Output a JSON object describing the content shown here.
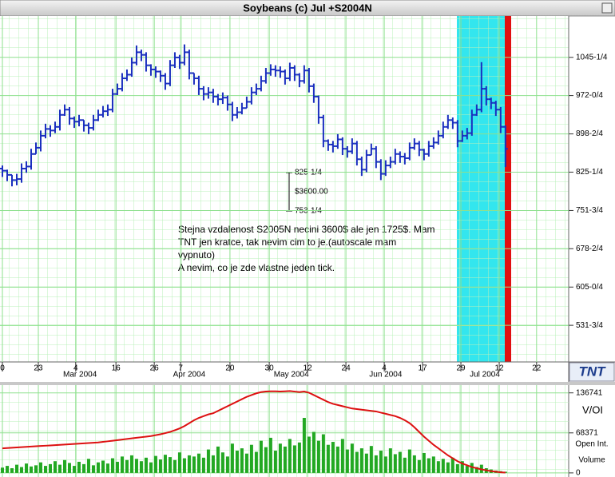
{
  "chart_data": [
    {
      "type": "ohlc",
      "title": "Soybeans (c) Jul +S2004N",
      "color": "#1a2fbf",
      "grid": true,
      "xlim": [
        0,
        118.7
      ],
      "xticks": [
        {
          "value": 0.5,
          "label": "0"
        },
        {
          "value": 8,
          "label": "23"
        },
        {
          "value": 15.8,
          "label": "4"
        },
        {
          "value": 24.2,
          "label": "16"
        },
        {
          "value": 32.2,
          "label": "26"
        },
        {
          "value": 37.7,
          "label": "7"
        },
        {
          "value": 48,
          "label": "20"
        },
        {
          "value": 56.2,
          "label": "30"
        },
        {
          "value": 64.2,
          "label": "12"
        },
        {
          "value": 72.2,
          "label": "24"
        },
        {
          "value": 80.2,
          "label": "4"
        },
        {
          "value": 88.2,
          "label": "17"
        },
        {
          "value": 96.2,
          "label": "29"
        },
        {
          "value": 104.2,
          "label": "12"
        },
        {
          "value": 112,
          "label": "22"
        }
      ],
      "month_labels": [
        {
          "value": 16.7,
          "label": "Mar 2004"
        },
        {
          "value": 39.5,
          "label": "Apr 2004"
        },
        {
          "value": 60.8,
          "label": "May 2004"
        },
        {
          "value": 80.5,
          "label": "Jun 2004"
        },
        {
          "value": 101.2,
          "label": "Jul 2004"
        }
      ],
      "ylim": [
        461.5,
        1124.5
      ],
      "yticks": [
        {
          "value": 531.75,
          "label": "531-3/4"
        },
        {
          "value": 605,
          "label": "605-0/4"
        },
        {
          "value": 678.5,
          "label": "678-2/4"
        },
        {
          "value": 751.75,
          "label": "751-3/4"
        },
        {
          "value": 825.25,
          "label": "825-1/4"
        },
        {
          "value": 898.5,
          "label": "898-2/4"
        },
        {
          "value": 972,
          "label": "972-0/4"
        },
        {
          "value": 1045.25,
          "label": "1045-1/4"
        }
      ],
      "open": [
        832,
        828,
        820,
        810,
        812,
        832,
        836,
        860,
        872,
        895,
        908,
        905,
        912,
        935,
        945,
        928,
        922,
        925,
        915,
        910,
        925,
        935,
        942,
        945,
        975,
        985,
        1005,
        1012,
        1035,
        1055,
        1050,
        1030,
        1022,
        1018,
        1010,
        995,
        1030,
        1045,
        1035,
        1055,
        1015,
        1005,
        985,
        975,
        978,
        970,
        965,
        968,
        955,
        935,
        940,
        948,
        960,
        978,
        985,
        1000,
        1015,
        1022,
        1020,
        1018,
        1005,
        1025,
        1012,
        1000,
        1020,
        990,
        970,
        930,
        885,
        878,
        875,
        888,
        870,
        865,
        880,
        850,
        830,
        858,
        870,
        845,
        822,
        838,
        845,
        860,
        855,
        852,
        872,
        880,
        868,
        860,
        875,
        882,
        895,
        912,
        925,
        920,
        885,
        895,
        900,
        935,
        945,
        985,
        965,
        958,
        945,
        912
      ],
      "high": [
        838,
        830,
        820,
        822,
        842,
        846,
        870,
        882,
        905,
        918,
        915,
        922,
        945,
        955,
        950,
        932,
        935,
        925,
        920,
        935,
        945,
        952,
        955,
        985,
        995,
        1015,
        1022,
        1045,
        1068,
        1060,
        1055,
        1032,
        1028,
        1020,
        1015,
        1040,
        1055,
        1050,
        1070,
        1060,
        1015,
        1010,
        990,
        988,
        985,
        975,
        978,
        972,
        960,
        950,
        958,
        970,
        988,
        995,
        1010,
        1025,
        1032,
        1030,
        1028,
        1022,
        1035,
        1030,
        1015,
        1030,
        1025,
        995,
        972,
        935,
        888,
        885,
        898,
        892,
        875,
        890,
        885,
        855,
        868,
        880,
        875,
        850,
        848,
        855,
        870,
        865,
        862,
        882,
        890,
        885,
        870,
        885,
        892,
        905,
        922,
        935,
        930,
        925,
        905,
        910,
        945,
        955,
        1036,
        990,
        968,
        962,
        950,
        915
      ],
      "low": [
        816,
        808,
        798,
        800,
        805,
        824,
        830,
        860,
        865,
        890,
        893,
        900,
        905,
        933,
        916,
        910,
        913,
        903,
        898,
        905,
        923,
        930,
        933,
        940,
        973,
        980,
        1000,
        1008,
        1030,
        1038,
        1018,
        1010,
        1006,
        998,
        983,
        990,
        1025,
        1023,
        1030,
        1003,
        993,
        973,
        963,
        966,
        958,
        953,
        956,
        943,
        923,
        928,
        936,
        948,
        955,
        973,
        980,
        995,
        1010,
        1008,
        1006,
        993,
        1000,
        1000,
        988,
        995,
        978,
        958,
        918,
        873,
        866,
        863,
        870,
        858,
        853,
        860,
        838,
        818,
        825,
        858,
        833,
        810,
        818,
        833,
        840,
        843,
        840,
        848,
        868,
        856,
        848,
        855,
        870,
        878,
        890,
        908,
        908,
        873,
        883,
        888,
        895,
        933,
        940,
        953,
        946,
        933,
        900,
        835
      ],
      "close": [
        828,
        820,
        810,
        812,
        832,
        836,
        860,
        872,
        895,
        908,
        905,
        912,
        935,
        945,
        928,
        922,
        925,
        915,
        910,
        925,
        935,
        942,
        945,
        975,
        985,
        1005,
        1012,
        1035,
        1055,
        1050,
        1030,
        1022,
        1018,
        1010,
        995,
        1030,
        1045,
        1035,
        1055,
        1015,
        1005,
        985,
        975,
        978,
        970,
        965,
        968,
        955,
        935,
        940,
        948,
        960,
        978,
        985,
        1000,
        1015,
        1022,
        1020,
        1018,
        1005,
        1025,
        1012,
        1000,
        1020,
        990,
        970,
        930,
        885,
        878,
        875,
        888,
        870,
        865,
        880,
        850,
        830,
        858,
        870,
        845,
        822,
        838,
        845,
        860,
        855,
        852,
        872,
        880,
        868,
        860,
        875,
        882,
        895,
        912,
        925,
        920,
        885,
        895,
        900,
        935,
        945,
        985,
        965,
        958,
        945,
        912,
        870
      ],
      "bracket": {
        "top": "825-1/4",
        "middle": "$3600.00",
        "bottom": "753-1/4"
      },
      "note": [
        "Stejna vzdalenost S2005N necini 3600$ ale jen 1725$. Mam",
        "TNT jen kratce, tak nevim cim to je.(autoscale mam",
        "vypnuto)",
        "A nevim, co je zde vlastne jeden tick."
      ],
      "logo": "TNT"
    },
    {
      "type": "volume",
      "title": "V/OI",
      "grid": true,
      "ylim": [
        -7000,
        150000
      ],
      "yticks": [
        0,
        68371,
        136741
      ],
      "series": [
        {
          "name": "Open Int.",
          "color": "#dd1111",
          "values": [
            42000,
            42500,
            43000,
            43500,
            44000,
            44500,
            45000,
            45500,
            46000,
            46500,
            47000,
            47500,
            48000,
            48500,
            49000,
            49500,
            50000,
            50500,
            51000,
            51500,
            52000,
            53000,
            54000,
            55000,
            56000,
            57000,
            58000,
            59000,
            60000,
            61000,
            62000,
            63000,
            64500,
            66000,
            68000,
            70000,
            73000,
            76000,
            80000,
            85000,
            90000,
            94000,
            97000,
            100000,
            102000,
            106000,
            110000,
            114000,
            118000,
            122000,
            126000,
            130000,
            133000,
            136000,
            138000,
            139000,
            139500,
            139500,
            139000,
            139500,
            140000,
            139000,
            138000,
            139000,
            137000,
            133000,
            129000,
            125000,
            121000,
            118000,
            116000,
            114000,
            112000,
            110000,
            109000,
            108000,
            107000,
            106000,
            105000,
            103000,
            101000,
            99000,
            97000,
            94000,
            90000,
            85000,
            78000,
            70000,
            62000,
            55000,
            48000,
            42000,
            36000,
            30000,
            25000,
            20000,
            16000,
            13000,
            10000,
            8000,
            6000,
            4500,
            3000,
            2000,
            1000,
            500
          ]
        },
        {
          "name": "Volume",
          "color": "#22a822",
          "values": [
            9000,
            12000,
            8000,
            14000,
            10000,
            16000,
            11000,
            13000,
            18000,
            12000,
            15000,
            20000,
            14000,
            22000,
            17000,
            12000,
            19000,
            15000,
            24000,
            13000,
            18000,
            21000,
            16000,
            25000,
            19000,
            28000,
            22000,
            30000,
            24000,
            20000,
            26000,
            18000,
            29000,
            23000,
            31000,
            27000,
            22000,
            35000,
            25000,
            30000,
            28000,
            33000,
            26000,
            40000,
            30000,
            45000,
            35000,
            28000,
            50000,
            38000,
            42000,
            33000,
            48000,
            36000,
            55000,
            44000,
            60000,
            38000,
            50000,
            45000,
            58000,
            47000,
            52000,
            94000,
            62000,
            70000,
            55000,
            66000,
            48000,
            53000,
            45000,
            58000,
            40000,
            50000,
            36000,
            42000,
            33000,
            46000,
            30000,
            38000,
            28000,
            42000,
            32000,
            36000,
            26000,
            40000,
            30000,
            22000,
            34000,
            25000,
            28000,
            20000,
            24000,
            18000,
            26000,
            15000,
            20000,
            12000,
            17000,
            10000,
            14000,
            8000,
            6000,
            4000,
            3000,
            2000
          ]
        }
      ]
    }
  ]
}
